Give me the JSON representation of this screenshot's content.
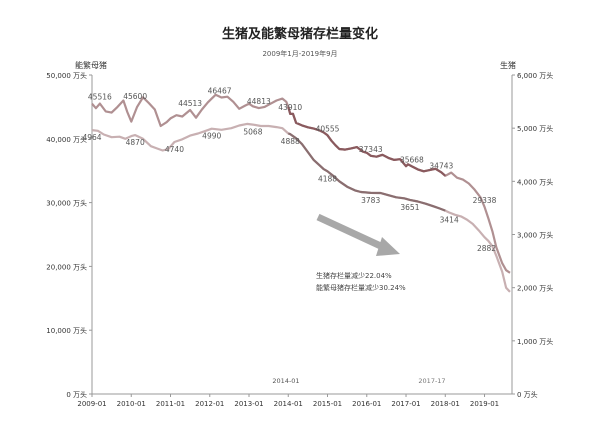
{
  "chart_data": {
    "type": "line",
    "title": "生猪及能繁母猪存栏量变化",
    "subtitle": "2009年1月-2019年9月",
    "y_left": {
      "label": "能繁母猪",
      "ylim": [
        0,
        50000
      ],
      "ticks": [
        0,
        10000,
        20000,
        30000,
        40000,
        50000
      ],
      "tick_labels": [
        "0 万头",
        "10,000 万头",
        "20,000 万头",
        "30,000 万头",
        "40,000 万头",
        "50,000 万头"
      ]
    },
    "y_right": {
      "label": "生猪",
      "ylim": [
        0,
        6000
      ],
      "ticks": [
        0,
        1000,
        2000,
        3000,
        4000,
        5000,
        6000
      ],
      "tick_labels": [
        "0 万头",
        "1,000 万头",
        "2,000 万头",
        "3,000 万头",
        "4,000 万头",
        "5,000 万头",
        "6,000 万头"
      ]
    },
    "x_axis": {
      "range": [
        2009.0,
        2019.7
      ],
      "ticks": [
        2009,
        2010,
        2011,
        2012,
        2013,
        2014,
        2015,
        2016,
        2017,
        2018,
        2019
      ],
      "tick_labels": [
        "2009-01",
        "2010-01",
        "2011-01",
        "2012-01",
        "2013-01",
        "2014-01",
        "2015-01",
        "2016-01",
        "2017-01",
        "2018-01",
        "2019-01"
      ]
    },
    "series": [
      {
        "axis": "left",
        "color": "#b09092",
        "color_highlight": "#8a5a5e",
        "points": [
          [
            2009.0,
            45500
          ],
          [
            2009.1,
            44800
          ],
          [
            2009.2,
            45516
          ],
          [
            2009.35,
            44300
          ],
          [
            2009.5,
            44100
          ],
          [
            2009.65,
            45000
          ],
          [
            2009.8,
            46000
          ],
          [
            2009.9,
            44200
          ],
          [
            2010.0,
            42700
          ],
          [
            2010.15,
            45000
          ],
          [
            2010.3,
            46500
          ],
          [
            2010.45,
            45600
          ],
          [
            2010.6,
            44600
          ],
          [
            2010.75,
            42000
          ],
          [
            2010.9,
            42600
          ],
          [
            2011.0,
            43200
          ],
          [
            2011.15,
            43700
          ],
          [
            2011.3,
            43500
          ],
          [
            2011.5,
            44513
          ],
          [
            2011.65,
            43300
          ],
          [
            2011.8,
            44600
          ],
          [
            2011.95,
            45700
          ],
          [
            2012.05,
            46300
          ],
          [
            2012.15,
            46900
          ],
          [
            2012.3,
            46467
          ],
          [
            2012.45,
            46600
          ],
          [
            2012.6,
            45800
          ],
          [
            2012.75,
            44700
          ],
          [
            2012.9,
            45200
          ],
          [
            2013.0,
            45500
          ],
          [
            2013.1,
            45100
          ],
          [
            2013.25,
            44813
          ],
          [
            2013.4,
            45000
          ],
          [
            2013.55,
            45500
          ],
          [
            2013.7,
            46000
          ],
          [
            2013.85,
            46300
          ],
          [
            2013.95,
            45800
          ],
          [
            2014.0,
            45000
          ],
          [
            2014.05,
            43910
          ],
          [
            2014.12,
            43900
          ],
          [
            2014.2,
            42500
          ],
          [
            2014.35,
            42100
          ],
          [
            2014.5,
            41800
          ],
          [
            2014.65,
            41600
          ],
          [
            2014.8,
            41300
          ],
          [
            2014.9,
            41000
          ],
          [
            2015.0,
            40555
          ],
          [
            2015.1,
            39700
          ],
          [
            2015.2,
            39000
          ],
          [
            2015.3,
            38400
          ],
          [
            2015.45,
            38300
          ],
          [
            2015.6,
            38500
          ],
          [
            2015.75,
            38700
          ],
          [
            2015.9,
            38000
          ],
          [
            2016.0,
            37800
          ],
          [
            2016.1,
            37343
          ],
          [
            2016.25,
            37200
          ],
          [
            2016.4,
            37500
          ],
          [
            2016.55,
            37000
          ],
          [
            2016.7,
            36700
          ],
          [
            2016.85,
            36800
          ],
          [
            2017.0,
            35700
          ],
          [
            2017.05,
            36000
          ],
          [
            2017.15,
            35668
          ],
          [
            2017.3,
            35200
          ],
          [
            2017.45,
            34900
          ],
          [
            2017.6,
            35100
          ],
          [
            2017.75,
            35300
          ],
          [
            2017.9,
            34743
          ],
          [
            2018.0,
            34200
          ],
          [
            2018.15,
            34700
          ],
          [
            2018.3,
            33900
          ],
          [
            2018.45,
            33600
          ],
          [
            2018.6,
            33000
          ],
          [
            2018.75,
            32000
          ],
          [
            2018.9,
            30800
          ],
          [
            2019.0,
            29338
          ],
          [
            2019.1,
            27500
          ],
          [
            2019.2,
            25500
          ],
          [
            2019.3,
            23000
          ],
          [
            2019.45,
            20500
          ],
          [
            2019.55,
            19400
          ],
          [
            2019.65,
            19000
          ]
        ]
      },
      {
        "axis": "right",
        "color": "#c8b0b2",
        "color_highlight": "#8a6e70",
        "points": [
          [
            2009.0,
            4964
          ],
          [
            2009.15,
            4950
          ],
          [
            2009.3,
            4880
          ],
          [
            2009.5,
            4830
          ],
          [
            2009.7,
            4840
          ],
          [
            2009.85,
            4800
          ],
          [
            2010.0,
            4850
          ],
          [
            2010.1,
            4870
          ],
          [
            2010.3,
            4800
          ],
          [
            2010.5,
            4660
          ],
          [
            2010.65,
            4620
          ],
          [
            2010.8,
            4580
          ],
          [
            2010.95,
            4610
          ],
          [
            2011.1,
            4740
          ],
          [
            2011.3,
            4790
          ],
          [
            2011.5,
            4860
          ],
          [
            2011.7,
            4900
          ],
          [
            2011.9,
            4950
          ],
          [
            2012.05,
            4990
          ],
          [
            2012.3,
            4970
          ],
          [
            2012.55,
            5000
          ],
          [
            2012.75,
            5050
          ],
          [
            2012.95,
            5080
          ],
          [
            2013.1,
            5068
          ],
          [
            2013.3,
            5040
          ],
          [
            2013.5,
            5040
          ],
          [
            2013.7,
            5020
          ],
          [
            2013.85,
            5000
          ],
          [
            2014.0,
            4900
          ],
          [
            2014.05,
            4888
          ],
          [
            2014.2,
            4810
          ],
          [
            2014.35,
            4700
          ],
          [
            2014.5,
            4550
          ],
          [
            2014.65,
            4400
          ],
          [
            2014.8,
            4300
          ],
          [
            2014.9,
            4230
          ],
          [
            2015.0,
            4188
          ],
          [
            2015.15,
            4100
          ],
          [
            2015.3,
            4000
          ],
          [
            2015.5,
            3900
          ],
          [
            2015.7,
            3830
          ],
          [
            2015.85,
            3800
          ],
          [
            2016.0,
            3790
          ],
          [
            2016.1,
            3783
          ],
          [
            2016.35,
            3780
          ],
          [
            2016.55,
            3740
          ],
          [
            2016.75,
            3700
          ],
          [
            2016.95,
            3680
          ],
          [
            2017.0,
            3671
          ],
          [
            2017.1,
            3651
          ],
          [
            2017.3,
            3620
          ],
          [
            2017.5,
            3580
          ],
          [
            2017.7,
            3530
          ],
          [
            2017.85,
            3490
          ],
          [
            2018.0,
            3450
          ],
          [
            2018.1,
            3414
          ],
          [
            2018.25,
            3370
          ],
          [
            2018.4,
            3340
          ],
          [
            2018.55,
            3280
          ],
          [
            2018.7,
            3200
          ],
          [
            2018.85,
            3080
          ],
          [
            2019.0,
            2950
          ],
          [
            2019.1,
            2880
          ],
          [
            2019.2,
            2780
          ],
          [
            2019.3,
            2600
          ],
          [
            2019.45,
            2300
          ],
          [
            2019.55,
            2000
          ],
          [
            2019.65,
            1920
          ]
        ]
      }
    ],
    "data_labels_left": [
      {
        "x": 2009.2,
        "y": 45516,
        "text": "45516"
      },
      {
        "x": 2010.1,
        "y": 45600,
        "text": "45600"
      },
      {
        "x": 2011.5,
        "y": 44513,
        "text": "44513"
      },
      {
        "x": 2012.25,
        "y": 46467,
        "text": "46467"
      },
      {
        "x": 2013.25,
        "y": 44813,
        "text": "44813"
      },
      {
        "x": 2014.05,
        "y": 43910,
        "text": "43910"
      },
      {
        "x": 2015.0,
        "y": 40555,
        "text": "40555"
      },
      {
        "x": 2016.1,
        "y": 37343,
        "text": "37343"
      },
      {
        "x": 2017.15,
        "y": 35668,
        "text": "35668"
      },
      {
        "x": 2017.9,
        "y": 34743,
        "text": "34743"
      },
      {
        "x": 2019.0,
        "y": 29338,
        "text": "29338"
      }
    ],
    "data_labels_right": [
      {
        "x": 2009.0,
        "y": 4964,
        "text": "4964"
      },
      {
        "x": 2010.1,
        "y": 4870,
        "text": "4870"
      },
      {
        "x": 2011.1,
        "y": 4740,
        "text": "4740"
      },
      {
        "x": 2012.05,
        "y": 4990,
        "text": "4990"
      },
      {
        "x": 2013.1,
        "y": 5068,
        "text": "5068"
      },
      {
        "x": 2014.05,
        "y": 4888,
        "text": "4888"
      },
      {
        "x": 2015.0,
        "y": 4188,
        "text": "4188"
      },
      {
        "x": 2016.1,
        "y": 3783,
        "text": "3783"
      },
      {
        "x": 2017.1,
        "y": 3651,
        "text": "3651"
      },
      {
        "x": 2018.1,
        "y": 3414,
        "text": "3414"
      },
      {
        "x": 2019.05,
        "y": 2882,
        "text": "2882"
      }
    ],
    "annotations": {
      "line1": "生猪存栏量减少22.04%",
      "line2": "能繁母猪存栏量减少30.24%",
      "marker_2014": "2014-01",
      "marker_2017": "2017-17"
    }
  }
}
